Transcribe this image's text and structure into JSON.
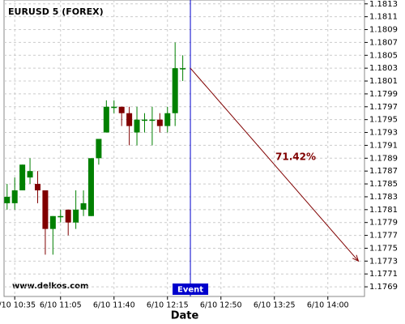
{
  "chart_data": {
    "type": "candlestick",
    "title": "EURUSD 5 (FOREX)",
    "watermark": "www.delkos.com",
    "x_label": "Date",
    "x": [
      "6/10 10:30",
      "6/10 10:35",
      "6/10 10:40",
      "6/10 10:45",
      "6/10 10:50",
      "6/10 10:55",
      "6/10 11:00",
      "6/10 11:05",
      "6/10 11:10",
      "6/10 11:15",
      "6/10 11:20",
      "6/10 11:25",
      "6/10 11:30",
      "6/10 11:35",
      "6/10 11:40",
      "6/10 11:45",
      "6/10 11:50",
      "6/10 11:55",
      "6/10 12:00",
      "6/10 12:05",
      "6/10 12:10",
      "6/10 12:15",
      "6/10 12:20",
      "6/10 12:25"
    ],
    "open": [
      1.1782,
      1.1782,
      1.1784,
      1.1786,
      1.1785,
      1.1784,
      1.1778,
      1.178,
      1.1781,
      1.1779,
      1.1781,
      1.178,
      1.1789,
      1.1793,
      1.1797,
      1.1797,
      1.1796,
      1.1793,
      1.1795,
      1.1795,
      1.1795,
      1.1794,
      1.1796,
      1.1803
    ],
    "high": [
      1.1785,
      1.1786,
      1.1788,
      1.1789,
      1.1787,
      1.1784,
      1.178,
      1.1781,
      1.1781,
      1.1784,
      1.1784,
      1.1789,
      1.1792,
      1.1798,
      1.1798,
      1.1797,
      1.1797,
      1.1797,
      1.1796,
      1.1797,
      1.1796,
      1.1797,
      1.1807,
      1.1805
    ],
    "low": [
      1.1781,
      1.1781,
      1.1784,
      1.1785,
      1.1782,
      1.1774,
      1.1774,
      1.1779,
      1.1777,
      1.1778,
      1.178,
      1.178,
      1.1788,
      1.1793,
      1.1796,
      1.1794,
      1.1791,
      1.1791,
      1.1793,
      1.1791,
      1.1793,
      1.1793,
      1.1794,
      1.1801
    ],
    "close": [
      1.1783,
      1.1784,
      1.1788,
      1.1787,
      1.1784,
      1.1778,
      1.178,
      1.178,
      1.1779,
      1.1781,
      1.1782,
      1.1789,
      1.1792,
      1.1797,
      1.1797,
      1.1796,
      1.1794,
      1.1795,
      1.1795,
      1.1795,
      1.1794,
      1.1796,
      1.1803,
      1.1803
    ],
    "up_color": "#008000",
    "down_color": "#800000",
    "xlim": [
      "6/10 10:28",
      "6/10 14:24"
    ],
    "xticks": [
      "6/10 10:35",
      "6/10 11:05",
      "6/10 11:40",
      "6/10 12:15",
      "6/10 12:50",
      "6/10 13:25",
      "6/10 14:00"
    ],
    "ylim": [
      1.17675,
      1.18136
    ],
    "yticks": [
      1.1769,
      1.1771,
      1.1773,
      1.1775,
      1.1777,
      1.1779,
      1.1781,
      1.1783,
      1.1785,
      1.1787,
      1.1789,
      1.1791,
      1.1793,
      1.1795,
      1.1797,
      1.1799,
      1.1801,
      1.1803,
      1.1805,
      1.1807,
      1.1809,
      1.1811,
      1.1813
    ],
    "grid": true,
    "event": {
      "x": "6/10 12:30",
      "label": "Event",
      "color": "#0000cc"
    },
    "arrow": {
      "from": [
        "6/10 12:30",
        1.1803
      ],
      "to": [
        "6/10 14:20",
        1.1773
      ],
      "label": "71.42%",
      "color": "#800000"
    }
  }
}
